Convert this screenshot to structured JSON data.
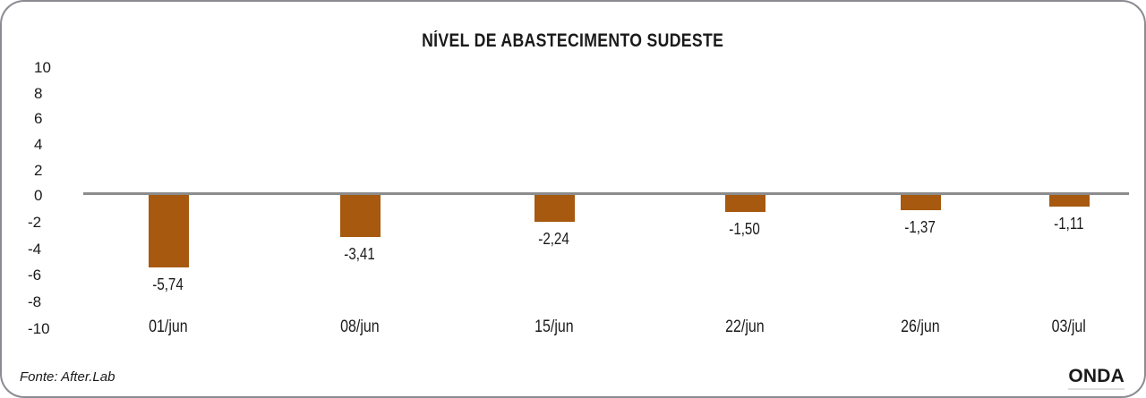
{
  "chart_data": {
    "type": "bar",
    "title": "NÍVEL DE ABASTECIMENTO SUDESTE",
    "categories": [
      "01/jun",
      "08/jun",
      "15/jun",
      "22/jun",
      "26/jun",
      "03/jul"
    ],
    "values": [
      -5.74,
      -3.41,
      -2.24,
      -1.5,
      -1.37,
      -1.11
    ],
    "value_labels": [
      "-5,74",
      "-3,41",
      "-2,24",
      "-1,50",
      "-1,37",
      "-1,11"
    ],
    "ytick_labels": [
      "10",
      "8",
      "6",
      "4",
      "2",
      "0",
      "-2",
      "-4",
      "-6",
      "-8",
      "-10"
    ],
    "ylim": [
      -10,
      10
    ],
    "xlabel": "",
    "ylabel": "",
    "grid": false,
    "legend": false,
    "bar_color": "#A6590F",
    "axis_line_color": "#8C8C8C",
    "text_color": "#1A1A1A"
  },
  "footer": {
    "source": "Fonte: After.Lab",
    "brand": "ONDA"
  }
}
